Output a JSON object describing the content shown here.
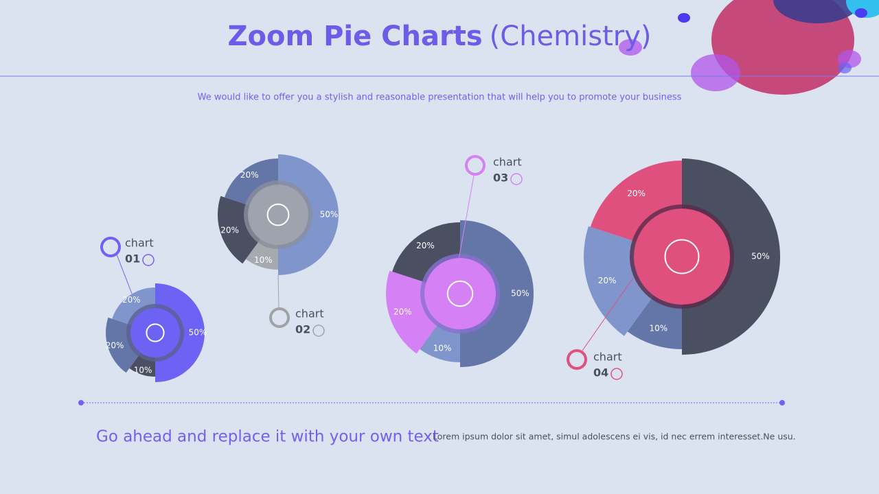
{
  "header": {
    "title_bold": "Zoom Pie Charts",
    "title_light": "(Chemistry)",
    "subtitle": "We would like to offer you a stylish and reasonable presentation that will help you to promote your business"
  },
  "chart_data": [
    {
      "type": "pie",
      "label": "chart",
      "number": "01",
      "values": [
        50,
        10,
        20,
        20
      ],
      "value_labels": [
        "50%",
        "10%",
        "20%",
        "20%"
      ],
      "colors": [
        "#6c63f5",
        "#4a4f62",
        "#6476a8",
        "#7f95cc"
      ]
    },
    {
      "type": "pie",
      "label": "chart",
      "number": "02",
      "values": [
        50,
        10,
        20,
        20
      ],
      "value_labels": [
        "50%",
        "10%",
        "20%",
        "20%"
      ],
      "colors": [
        "#7f95cc",
        "#a7a9b0",
        "#4a4f62",
        "#6476a8"
      ]
    },
    {
      "type": "pie",
      "label": "chart",
      "number": "03",
      "values": [
        50,
        10,
        20,
        20
      ],
      "value_labels": [
        "50%",
        "10%",
        "20%",
        "20%"
      ],
      "colors": [
        "#6476a8",
        "#7f95cc",
        "#d580f5",
        "#4a4f62"
      ]
    },
    {
      "type": "pie",
      "label": "chart",
      "number": "04",
      "values": [
        50,
        10,
        20,
        20
      ],
      "value_labels": [
        "50%",
        "10%",
        "20%",
        "20%"
      ],
      "colors": [
        "#4a4f62",
        "#6476a8",
        "#7f95cc",
        "#e0507e"
      ]
    }
  ],
  "footer": {
    "headline": "Go ahead and replace it with your own text",
    "body": "Lorem ipsum dolor sit amet, simul adolescens ei vis, id nec errem interesset.Ne usu."
  }
}
